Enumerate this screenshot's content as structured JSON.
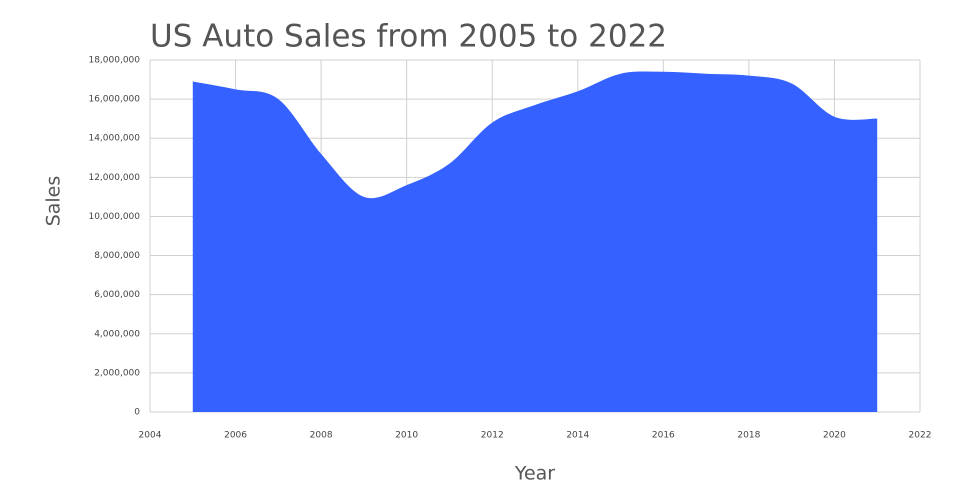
{
  "chart_data": {
    "type": "area",
    "title": "US Auto Sales from 2005 to 2022",
    "x_label": "Year",
    "y_label": "Sales",
    "x": [
      2005,
      2006,
      2007,
      2008,
      2009,
      2010,
      2011,
      2012,
      2013,
      2014,
      2015,
      2016,
      2017,
      2018,
      2019,
      2020,
      2021
    ],
    "values": [
      16900000,
      16500000,
      16000000,
      13200000,
      11000000,
      11600000,
      12700000,
      14800000,
      15700000,
      16400000,
      17300000,
      17400000,
      17300000,
      17200000,
      16800000,
      15100000,
      15000000
    ],
    "color": "#3461ff",
    "xlim": [
      2004,
      2022
    ],
    "xticks": [
      2004,
      2006,
      2008,
      2010,
      2012,
      2014,
      2016,
      2018,
      2020,
      2022
    ],
    "ylim": [
      0,
      18000000
    ],
    "yticks": [
      0,
      {
        "value": 2000000,
        "label": "2,000,000"
      },
      {
        "value": 4000000,
        "label": "4,000,000"
      },
      {
        "value": 6000000,
        "label": "6,000,000"
      },
      {
        "value": 8000000,
        "label": "8,000,000"
      },
      {
        "value": 10000000,
        "label": "10,000,000"
      },
      {
        "value": 12000000,
        "label": "12,000,000"
      },
      {
        "value": 14000000,
        "label": "14,000,000"
      },
      {
        "value": 16000000,
        "label": "16,000,000"
      },
      {
        "value": 18000000,
        "label": "18,000,000"
      }
    ],
    "grid": true,
    "smooth": true
  }
}
